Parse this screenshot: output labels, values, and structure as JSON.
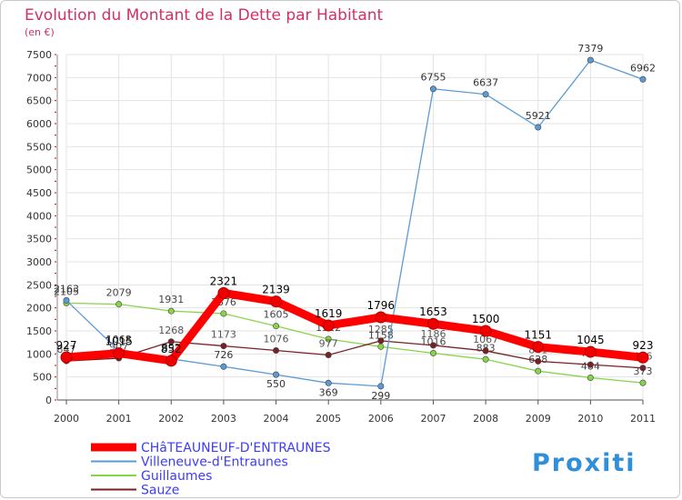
{
  "chart_data": {
    "type": "line",
    "title": "Evolution du Montant de la Dette par Habitant",
    "subtitle": "(en €)",
    "x": [
      "2000",
      "2001",
      "2002",
      "2003",
      "2004",
      "2005",
      "2006",
      "2007",
      "2008",
      "2009",
      "2010",
      "2011"
    ],
    "yticks": [
      0,
      500,
      1000,
      1500,
      2000,
      2500,
      3000,
      3500,
      4000,
      4500,
      5000,
      5500,
      6000,
      6500,
      7000,
      7500
    ],
    "ylim": [
      0,
      7500
    ],
    "grid": true,
    "legend_position": "bottom-left",
    "series": [
      {
        "name": "CHâTEAUNEUF-D'ENTRAUNES",
        "color": "#ff0000",
        "values": [
          927,
          1015,
          852,
          2321,
          2139,
          1619,
          1796,
          1653,
          1500,
          1151,
          1045,
          923
        ]
      },
      {
        "name": "Villeneuve-d'Entraunes",
        "color": "#5b9bd5",
        "values": [
          2163,
          1068,
          892,
          726,
          550,
          369,
          299,
          6755,
          6637,
          5921,
          7379,
          6962
        ]
      },
      {
        "name": "Guillaumes",
        "color": "#88d449",
        "values": [
          2105,
          2079,
          1931,
          1876,
          1605,
          1322,
          1158,
          1016,
          883,
          628,
          484,
          373
        ]
      },
      {
        "name": "Sauze",
        "color": "#7a1f28",
        "values": [
          847,
          907,
          1268,
          1173,
          1076,
          977,
          1285,
          1186,
          1067,
          841,
          768,
          696
        ]
      }
    ]
  },
  "branding": {
    "logo_text": "Proxiti"
  }
}
